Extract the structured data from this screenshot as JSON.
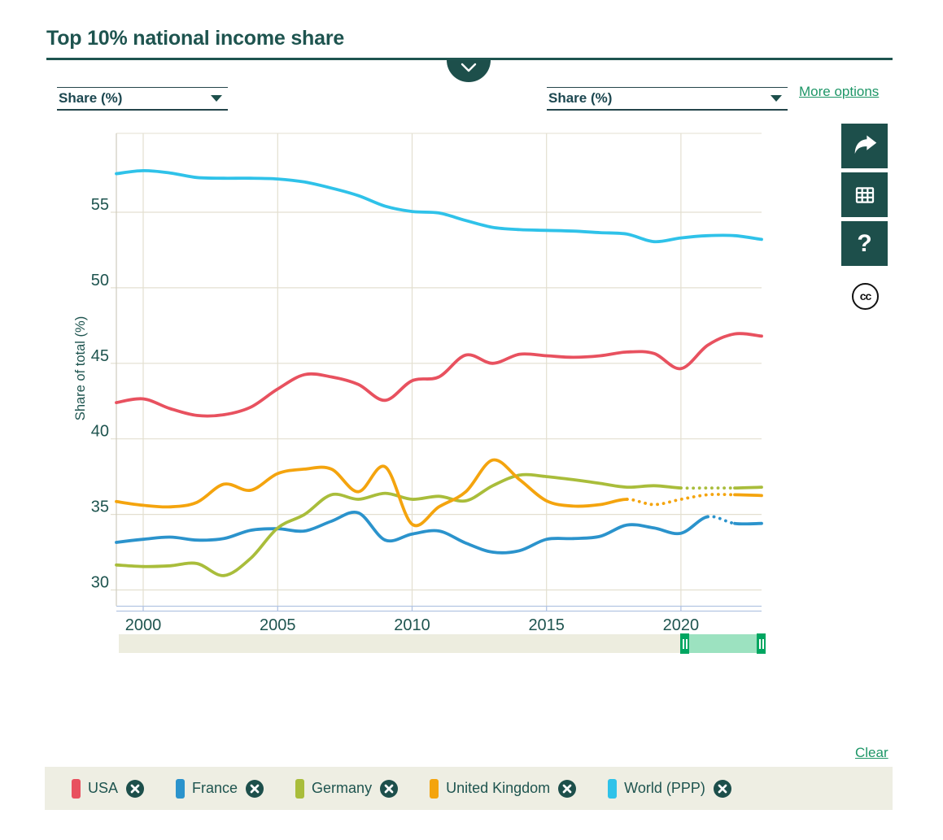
{
  "header": {
    "title": "Top 10% national income share"
  },
  "controls": {
    "left_metric_select": {
      "value": "Share (%)"
    },
    "right_metric_select": {
      "value": "Share (%)"
    },
    "more_options_label": "More options"
  },
  "toolbar": {
    "buttons": [
      {
        "icon": "share-icon"
      },
      {
        "icon": "table-icon"
      },
      {
        "icon": "help-icon"
      }
    ],
    "license_icon": "cc-icon",
    "cc_text": "cc"
  },
  "chart_data": {
    "type": "line",
    "title": "Top 10% national income share",
    "xlabel": "",
    "ylabel": "Share of total (%)",
    "grid": true,
    "legend_position": "bottom",
    "xlim": [
      1999,
      2023
    ],
    "ylim": [
      28.95,
      60.22
    ],
    "xticks": [
      2000,
      2005,
      2010,
      2015,
      2020
    ],
    "yticks": [
      30,
      35,
      40,
      45,
      50,
      55
    ],
    "x": [
      1999,
      2000,
      2001,
      2002,
      2003,
      2004,
      2005,
      2006,
      2007,
      2008,
      2009,
      2010,
      2011,
      2012,
      2013,
      2014,
      2015,
      2016,
      2017,
      2018,
      2019,
      2020,
      2021,
      2022,
      2023
    ],
    "series": [
      {
        "name": "USA",
        "color": "#e8515f",
        "values": [
          42.4,
          42.65,
          42.0,
          41.55,
          41.6,
          42.1,
          43.3,
          44.25,
          44.1,
          43.6,
          42.55,
          43.85,
          44.1,
          45.55,
          45.0,
          45.6,
          45.5,
          45.4,
          45.5,
          45.75,
          45.65,
          44.65,
          46.2,
          46.95,
          46.8
        ]
      },
      {
        "name": "France",
        "color": "#2b93cc",
        "dotted": [
          2021,
          2022
        ],
        "values": [
          33.15,
          33.35,
          33.5,
          33.3,
          33.4,
          33.95,
          34.05,
          33.9,
          34.55,
          35.1,
          33.3,
          33.7,
          33.9,
          33.1,
          32.5,
          32.6,
          33.35,
          33.4,
          33.55,
          34.3,
          34.1,
          33.75,
          34.85,
          34.4,
          34.4
        ]
      },
      {
        "name": "Germany",
        "color": "#a9bd3b",
        "dotted": [
          2020,
          2022
        ],
        "values": [
          31.65,
          31.55,
          31.6,
          31.75,
          30.95,
          32.1,
          34.1,
          35.0,
          36.3,
          36.0,
          36.4,
          36.0,
          36.2,
          35.9,
          36.9,
          37.6,
          37.5,
          37.3,
          37.05,
          36.8,
          36.9,
          36.75,
          36.75,
          36.75,
          36.8
        ]
      },
      {
        "name": "United Kingdom",
        "color": "#f4a40e",
        "dotted": [
          2018,
          2022
        ],
        "values": [
          35.85,
          35.6,
          35.5,
          35.8,
          37.0,
          36.6,
          37.7,
          38.0,
          38.0,
          36.5,
          38.15,
          34.35,
          35.5,
          36.5,
          38.6,
          37.3,
          35.9,
          35.55,
          35.65,
          36.0,
          35.65,
          36.0,
          36.3,
          36.3,
          36.25
        ]
      },
      {
        "name": "World (PPP)",
        "color": "#2fc2e9",
        "values": [
          57.55,
          57.75,
          57.6,
          57.3,
          57.25,
          57.25,
          57.2,
          57.0,
          56.6,
          56.1,
          55.4,
          55.05,
          54.95,
          54.45,
          54.0,
          53.85,
          53.8,
          53.75,
          53.65,
          53.55,
          53.05,
          53.3,
          53.45,
          53.45,
          53.2
        ]
      }
    ]
  },
  "timeline_slider": {
    "selected_fraction": [
      0.868,
      1.0
    ]
  },
  "legend": {
    "clear_label": "Clear",
    "items": [
      {
        "label": "USA",
        "color": "#e8515f"
      },
      {
        "label": "France",
        "color": "#2b93cc"
      },
      {
        "label": "Germany",
        "color": "#a9bd3b"
      },
      {
        "label": "United Kingdom",
        "color": "#f4a40e"
      },
      {
        "label": "World (PPP)",
        "color": "#2fc2e9"
      }
    ]
  },
  "theme": {
    "teal": "#1d4f4b",
    "teal-text": "#1e544f",
    "link": "#1e9667",
    "grid": "#e3dfd0",
    "plot-border": "#cfccbe",
    "axis-line": "#b3c4e2",
    "dd-border": "#24454a",
    "slider-track": "#ededdf",
    "slider-range": "#9ce2c0",
    "slider-handle": "#00a661",
    "legend-bg": "#eeeee3"
  }
}
